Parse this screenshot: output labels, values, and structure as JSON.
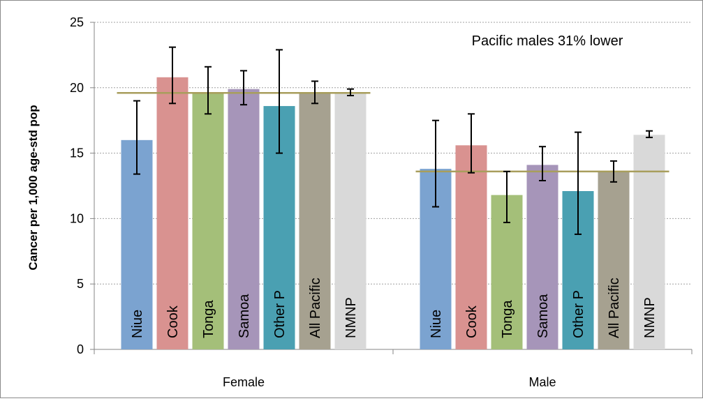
{
  "chart_data": {
    "type": "bar",
    "ylabel": "Cancer per 1,000 age-std pop",
    "ylim": [
      0,
      25
    ],
    "yticks": [
      0,
      5,
      10,
      15,
      20,
      25
    ],
    "grid": true,
    "annotation": "Pacific males 31% lower",
    "groups": [
      {
        "name": "Female",
        "reference_line": 19.6,
        "bars": [
          {
            "label": "Niue",
            "value": 16.0,
            "err_low": 13.4,
            "err_high": 19.0,
            "color": "#7ba3d0"
          },
          {
            "label": "Cook",
            "value": 20.8,
            "err_low": 18.8,
            "err_high": 23.1,
            "color": "#d99290"
          },
          {
            "label": "Tonga",
            "value": 19.6,
            "err_low": 18.0,
            "err_high": 21.6,
            "color": "#a4bf79"
          },
          {
            "label": "Samoa",
            "value": 19.9,
            "err_low": 18.7,
            "err_high": 21.3,
            "color": "#a695b9"
          },
          {
            "label": "Other P",
            "value": 18.6,
            "err_low": 15.0,
            "err_high": 22.9,
            "color": "#4aa0b2"
          },
          {
            "label": "All Pacific",
            "value": 19.6,
            "err_low": 18.8,
            "err_high": 20.5,
            "color": "#a6a190"
          },
          {
            "label": "NMNP",
            "value": 19.6,
            "err_low": 19.4,
            "err_high": 19.9,
            "color": "#d9d9d9"
          }
        ]
      },
      {
        "name": "Male",
        "reference_line": 13.6,
        "bars": [
          {
            "label": "Niue",
            "value": 13.8,
            "err_low": 10.9,
            "err_high": 17.5,
            "color": "#7ba3d0"
          },
          {
            "label": "Cook",
            "value": 15.6,
            "err_low": 13.5,
            "err_high": 18.0,
            "color": "#d99290"
          },
          {
            "label": "Tonga",
            "value": 11.8,
            "err_low": 9.7,
            "err_high": 13.6,
            "color": "#a4bf79"
          },
          {
            "label": "Samoa",
            "value": 14.1,
            "err_low": 12.9,
            "err_high": 15.5,
            "color": "#a695b9"
          },
          {
            "label": "Other P",
            "value": 12.1,
            "err_low": 8.8,
            "err_high": 16.6,
            "color": "#4aa0b2"
          },
          {
            "label": "All Pacific",
            "value": 13.6,
            "err_low": 12.8,
            "err_high": 14.4,
            "color": "#a6a190"
          },
          {
            "label": "NMNP",
            "value": 16.4,
            "err_low": 16.2,
            "err_high": 16.7,
            "color": "#d9d9d9"
          }
        ]
      }
    ],
    "colors": {
      "reference_line": "#a89e5c",
      "error_bar": "#000000",
      "grid": "#a0a0a0",
      "axis": "#868686"
    }
  }
}
